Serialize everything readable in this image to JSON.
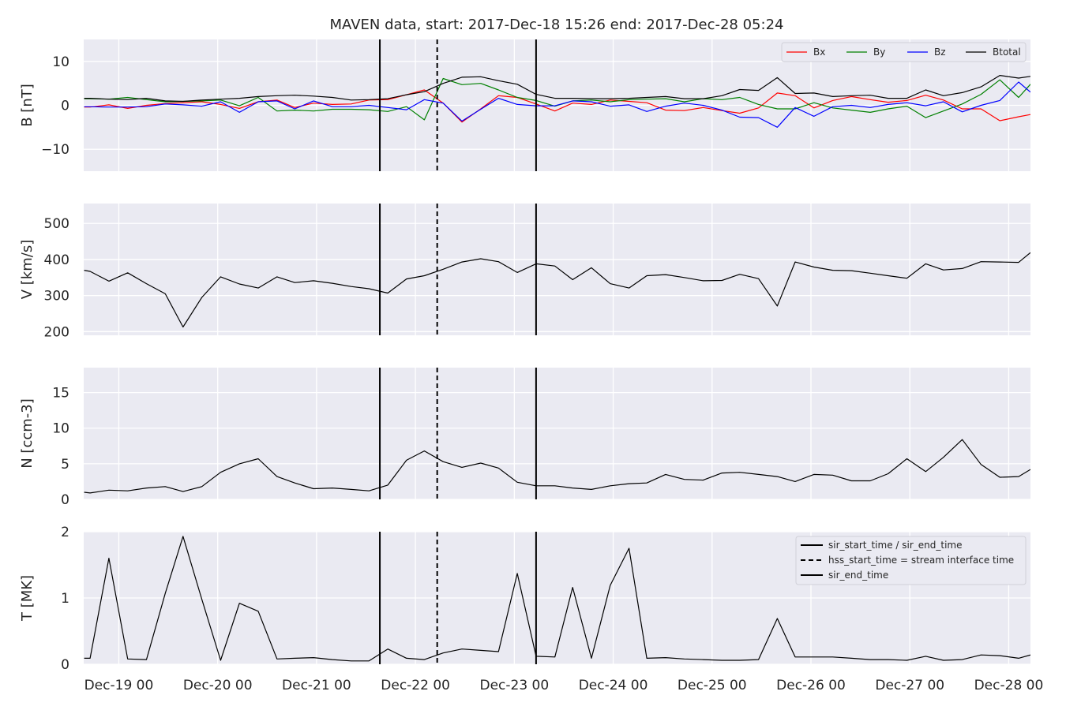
{
  "title": "MAVEN data, start: 2017-Dec-18 15:26  end: 2017-Dec-28 05:24",
  "x_tick_labels": [
    "Dec-19 00",
    "Dec-20 00",
    "Dec-21 00",
    "Dec-22 00",
    "Dec-23 00",
    "Dec-24 00",
    "Dec-25 00",
    "Dec-26 00",
    "Dec-27 00",
    "Dec-28 00"
  ],
  "x_tick_days": [
    1,
    2,
    3,
    4,
    5,
    6,
    7,
    8,
    9,
    10
  ],
  "colors": {
    "background": "#eaeaf2",
    "grid": "#ffffff",
    "Bx": "#ff0000",
    "By": "#008000",
    "Bz": "#0000ff",
    "Btotal": "#000000",
    "marker": "#000000"
  },
  "markers": [
    {
      "day": 3.64,
      "style": "solid"
    },
    {
      "day": 4.22,
      "style": "dashed"
    },
    {
      "day": 5.22,
      "style": "solid"
    }
  ],
  "legend_b": {
    "placement": "top-right",
    "items": [
      "Bx",
      "By",
      "Bz",
      "Btotal"
    ]
  },
  "legend_t": {
    "placement": "top-right",
    "items": [
      {
        "label": "sir_start_time / sir_end_time",
        "style": "solid"
      },
      {
        "label": "hss_start_time = stream interface time",
        "style": "dashed"
      },
      {
        "label": "sir_end_time",
        "style": "solid"
      }
    ]
  },
  "chart_data": [
    {
      "type": "line",
      "panel": "B",
      "ylabel": "B [nT]",
      "ylim": [
        -15,
        15
      ],
      "yticks": [
        -10,
        0,
        10
      ],
      "x": [
        0.65,
        0.71,
        0.9,
        1.09,
        1.28,
        1.47,
        1.65,
        1.84,
        2.03,
        2.22,
        2.41,
        2.6,
        2.78,
        2.97,
        3.16,
        3.35,
        3.53,
        3.72,
        3.91,
        4.09,
        4.28,
        4.47,
        4.66,
        4.84,
        5.03,
        5.22,
        5.41,
        5.59,
        5.78,
        5.97,
        6.16,
        6.34,
        6.53,
        6.72,
        6.91,
        7.1,
        7.28,
        7.47,
        7.66,
        7.84,
        8.03,
        8.22,
        8.41,
        8.6,
        8.78,
        8.97,
        9.16,
        9.34,
        9.53,
        9.72,
        9.91,
        10.1,
        10.22
      ],
      "series": [
        {
          "name": "Bx",
          "values": [
            -0.4,
            -0.4,
            0.1,
            -0.7,
            0.0,
            0.4,
            0.6,
            0.8,
            0.2,
            -0.7,
            0.8,
            1.2,
            -0.5,
            0.5,
            0.2,
            0.3,
            1.2,
            1.3,
            2.4,
            3.5,
            0.5,
            -3.8,
            -0.8,
            2.2,
            1.8,
            0.3,
            -1.3,
            0.5,
            0.2,
            1.2,
            0.9,
            0.6,
            -1.1,
            -1.2,
            -0.5,
            -1.2,
            -1.8,
            -0.6,
            2.8,
            2.2,
            -0.6,
            1.1,
            2.0,
            1.3,
            0.7,
            1.1,
            2.3,
            1.2,
            -0.8,
            -0.8,
            -3.5,
            -2.6,
            -2.1
          ]
        },
        {
          "name": "By",
          "values": [
            1.5,
            1.5,
            1.4,
            1.8,
            1.3,
            0.8,
            0.9,
            1.0,
            1.2,
            -0.1,
            1.8,
            -1.3,
            -1.1,
            -1.3,
            -0.9,
            -0.9,
            -1.0,
            -1.4,
            -0.3,
            -3.3,
            6.1,
            4.7,
            5.0,
            3.5,
            1.8,
            1.1,
            -0.2,
            1.0,
            1.2,
            0.8,
            1.3,
            1.4,
            1.5,
            0.8,
            1.5,
            1.3,
            1.8,
            0.2,
            -0.8,
            -0.8,
            0.6,
            -0.6,
            -1.1,
            -1.6,
            -0.8,
            -0.2,
            -2.8,
            -1.3,
            0.3,
            2.5,
            5.8,
            1.8,
            4.8
          ]
        },
        {
          "name": "Bz",
          "values": [
            -0.3,
            -0.3,
            -0.4,
            -0.4,
            -0.3,
            0.3,
            0.1,
            -0.2,
            0.8,
            -1.6,
            0.8,
            1.0,
            -0.8,
            1.0,
            -0.3,
            -0.3,
            0.0,
            -0.5,
            -1.0,
            1.3,
            0.5,
            -3.6,
            -0.9,
            1.6,
            0.2,
            -0.1,
            -0.1,
            1.0,
            0.8,
            -0.2,
            0.1,
            -1.4,
            -0.2,
            0.5,
            0.0,
            -1.1,
            -2.7,
            -2.8,
            -5.0,
            -0.5,
            -2.5,
            -0.3,
            0.0,
            -0.5,
            0.2,
            0.6,
            -0.1,
            0.8,
            -1.5,
            0.0,
            1.1,
            5.3,
            3.0
          ]
        },
        {
          "name": "Btotal",
          "values": [
            1.6,
            1.6,
            1.4,
            1.3,
            1.6,
            1.0,
            0.9,
            1.2,
            1.4,
            1.6,
            2.0,
            2.2,
            2.3,
            2.1,
            1.8,
            1.2,
            1.3,
            1.5,
            2.4,
            3.1,
            5.0,
            6.4,
            6.5,
            5.6,
            4.8,
            2.5,
            1.6,
            1.6,
            1.5,
            1.5,
            1.6,
            1.8,
            2.0,
            1.5,
            1.5,
            2.2,
            3.6,
            3.4,
            6.3,
            2.7,
            2.8,
            2.0,
            2.2,
            2.3,
            1.6,
            1.6,
            3.5,
            2.2,
            2.9,
            4.2,
            6.8,
            6.2,
            6.6
          ]
        }
      ]
    },
    {
      "type": "line",
      "panel": "V",
      "ylabel": "V [km/s]",
      "ylim": [
        190,
        555
      ],
      "yticks": [
        200,
        300,
        400,
        500
      ],
      "x": [
        0.65,
        0.71,
        0.9,
        1.09,
        1.28,
        1.47,
        1.65,
        1.84,
        2.03,
        2.22,
        2.41,
        2.6,
        2.78,
        2.97,
        3.16,
        3.35,
        3.53,
        3.72,
        3.91,
        4.09,
        4.28,
        4.47,
        4.66,
        4.84,
        5.03,
        5.22,
        5.41,
        5.59,
        5.78,
        5.97,
        6.16,
        6.34,
        6.53,
        6.72,
        6.91,
        7.1,
        7.28,
        7.47,
        7.66,
        7.84,
        8.03,
        8.22,
        8.41,
        8.6,
        8.78,
        8.97,
        9.16,
        9.34,
        9.53,
        9.72,
        9.91,
        10.1,
        10.22
      ],
      "series": [
        {
          "name": "V",
          "values": [
            370,
            367,
            340,
            363,
            333,
            305,
            213,
            295,
            352,
            332,
            321,
            352,
            336,
            341,
            334,
            325,
            319,
            307,
            346,
            355,
            373,
            393,
            402,
            394,
            364,
            388,
            382,
            344,
            377,
            333,
            321,
            355,
            358,
            350,
            341,
            342,
            359,
            347,
            271,
            393,
            379,
            370,
            369,
            362,
            355,
            348,
            388,
            371,
            375,
            394,
            393,
            392,
            419
          ]
        }
      ]
    },
    {
      "type": "line",
      "panel": "N",
      "ylabel": "N [ccm-3]",
      "ylim": [
        0,
        18.5
      ],
      "yticks": [
        0,
        5,
        10,
        15
      ],
      "x": [
        0.65,
        0.71,
        0.9,
        1.09,
        1.28,
        1.47,
        1.65,
        1.84,
        2.03,
        2.22,
        2.41,
        2.6,
        2.78,
        2.97,
        3.16,
        3.35,
        3.53,
        3.72,
        3.91,
        4.09,
        4.28,
        4.47,
        4.66,
        4.84,
        5.03,
        5.22,
        5.41,
        5.59,
        5.78,
        5.97,
        6.16,
        6.34,
        6.53,
        6.72,
        6.91,
        7.1,
        7.28,
        7.47,
        7.66,
        7.84,
        8.03,
        8.22,
        8.41,
        8.6,
        8.78,
        8.97,
        9.16,
        9.34,
        9.53,
        9.72,
        9.91,
        10.1,
        10.22
      ],
      "series": [
        {
          "name": "N",
          "values": [
            1.0,
            0.9,
            1.3,
            1.2,
            1.6,
            1.8,
            1.1,
            1.8,
            3.8,
            5.0,
            5.7,
            3.2,
            2.3,
            1.5,
            1.6,
            1.4,
            1.2,
            2.0,
            5.5,
            6.8,
            5.3,
            4.5,
            5.1,
            4.4,
            2.4,
            1.9,
            1.9,
            1.6,
            1.4,
            1.9,
            2.2,
            2.3,
            3.5,
            2.8,
            2.7,
            3.7,
            3.8,
            3.5,
            3.2,
            2.5,
            3.5,
            3.4,
            2.6,
            2.6,
            3.6,
            5.7,
            3.9,
            5.9,
            8.4,
            4.9,
            3.1,
            3.2,
            4.2
          ]
        }
      ]
    },
    {
      "type": "line",
      "panel": "T",
      "ylabel": "T [MK]",
      "ylim": [
        0,
        2
      ],
      "yticks": [
        0,
        1,
        2
      ],
      "x": [
        0.65,
        0.71,
        0.9,
        1.09,
        1.28,
        1.47,
        1.65,
        1.84,
        2.03,
        2.22,
        2.41,
        2.6,
        2.78,
        2.97,
        3.16,
        3.35,
        3.53,
        3.72,
        3.91,
        4.09,
        4.28,
        4.47,
        4.66,
        4.84,
        5.03,
        5.22,
        5.41,
        5.59,
        5.78,
        5.97,
        6.16,
        6.34,
        6.53,
        6.72,
        6.91,
        7.1,
        7.28,
        7.47,
        7.66,
        7.84,
        8.03,
        8.22,
        8.41,
        8.6,
        8.78,
        8.97,
        9.16,
        9.34,
        9.53,
        9.72,
        9.91,
        10.1,
        10.22
      ],
      "series": [
        {
          "name": "T",
          "values": [
            0.09,
            0.09,
            1.6,
            0.08,
            0.07,
            1.07,
            1.93,
            0.98,
            0.06,
            0.92,
            0.8,
            0.08,
            0.09,
            0.1,
            0.07,
            0.05,
            0.05,
            0.23,
            0.09,
            0.07,
            0.17,
            0.23,
            0.21,
            0.19,
            1.37,
            0.12,
            0.11,
            1.16,
            0.09,
            1.19,
            1.75,
            0.09,
            0.1,
            0.08,
            0.07,
            0.06,
            0.06,
            0.07,
            0.69,
            0.11,
            0.11,
            0.11,
            0.09,
            0.07,
            0.07,
            0.06,
            0.12,
            0.06,
            0.07,
            0.14,
            0.13,
            0.09,
            0.14
          ]
        }
      ]
    }
  ]
}
